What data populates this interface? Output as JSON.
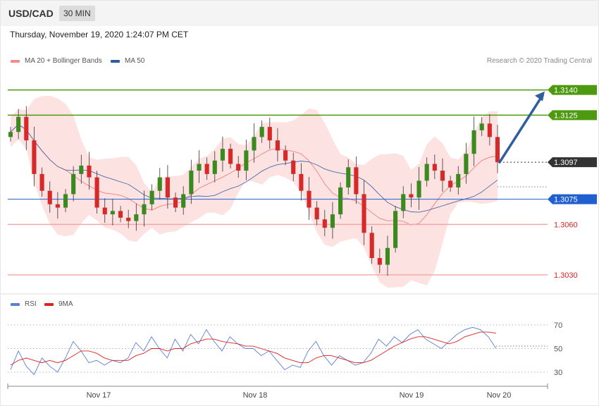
{
  "header": {
    "symbol": "USD/CAD",
    "timeframe": "30 MIN"
  },
  "timestamp": "Thursday, November 19, 2020 1:24:07 PM CET",
  "legend_top": [
    {
      "label": "MA 20 + Bollinger Bands",
      "color": "#f48c8c"
    },
    {
      "label": "MA 50",
      "color": "#2f5d9e"
    }
  ],
  "credit": "Research © 2020 Trading Central",
  "legend_bottom": [
    {
      "label": "RSI",
      "color": "#5b7fd6"
    },
    {
      "label": "9MA",
      "color": "#e02020"
    }
  ],
  "colors": {
    "up": "#3a8a1f",
    "down": "#d62a2a",
    "bb_fill": "#fde2e2",
    "ma20": "#f28080",
    "ma50": "#4a6aa8",
    "resistance": "#4d9a10",
    "support_blue": "#1f5fcf",
    "support_red": "#f4a6a6",
    "current": "#333333",
    "arrow": "#2f5d9e"
  },
  "chart_data": [
    {
      "type": "candlestick",
      "x_labels": [
        "Nov 17",
        "Nov 18",
        "Nov 19",
        "Nov 20"
      ],
      "ylim": [
        1.3022,
        1.3152
      ],
      "levels": [
        {
          "value": 1.314,
          "label": "1.3140",
          "style": "resistance"
        },
        {
          "value": 1.3125,
          "label": "1.3125",
          "style": "resistance"
        },
        {
          "value": 1.3097,
          "label": "1.3097",
          "style": "current"
        },
        {
          "value": 1.3075,
          "label": "1.3075",
          "style": "pivot"
        },
        {
          "value": 1.306,
          "label": "1.3060",
          "style": "support"
        },
        {
          "value": 1.303,
          "label": "1.3030",
          "style": "support"
        }
      ],
      "projection": {
        "from": 1.3097,
        "to": 1.314
      },
      "close_path": [
        1.3115,
        1.3124,
        1.311,
        1.309,
        1.308,
        1.3072,
        1.307,
        1.3078,
        1.309,
        1.3095,
        1.3088,
        1.307,
        1.3066,
        1.3068,
        1.3064,
        1.3062,
        1.3066,
        1.3072,
        1.308,
        1.3088,
        1.3076,
        1.307,
        1.3078,
        1.3092,
        1.3096,
        1.309,
        1.3098,
        1.3105,
        1.3096,
        1.3092,
        1.3104,
        1.3112,
        1.3118,
        1.311,
        1.3104,
        1.3098,
        1.309,
        1.308,
        1.307,
        1.3063,
        1.3058,
        1.3066,
        1.3082,
        1.3094,
        1.3078,
        1.3055,
        1.304,
        1.3036,
        1.3046,
        1.3068,
        1.3078,
        1.3076,
        1.3086,
        1.3096,
        1.3092,
        1.3086,
        1.3082,
        1.309,
        1.3102,
        1.3116,
        1.312,
        1.3112,
        1.3097
      ]
    },
    {
      "type": "line",
      "title": "RSI",
      "ylim": [
        20,
        80
      ],
      "y_ticks": [
        70,
        50,
        30
      ],
      "series": [
        {
          "name": "RSI",
          "values": [
            32,
            48,
            35,
            28,
            42,
            35,
            30,
            42,
            56,
            48,
            38,
            40,
            36,
            40,
            38,
            42,
            55,
            48,
            60,
            50,
            42,
            58,
            48,
            62,
            54,
            66,
            56,
            48,
            60,
            54,
            50,
            50,
            44,
            48,
            40,
            32,
            36,
            34,
            48,
            56,
            44,
            36,
            44,
            40,
            36,
            38,
            46,
            58,
            52,
            60,
            55,
            62,
            66,
            58,
            54,
            50,
            56,
            62,
            66,
            68,
            66,
            60,
            50
          ]
        },
        {
          "name": "9MA",
          "values": [
            36,
            40,
            42,
            40,
            38,
            40,
            38,
            40,
            44,
            48,
            48,
            46,
            42,
            40,
            40,
            40,
            44,
            46,
            50,
            50,
            48,
            50,
            50,
            54,
            56,
            58,
            58,
            56,
            55,
            54,
            52,
            52,
            50,
            48,
            46,
            42,
            40,
            38,
            38,
            42,
            44,
            44,
            42,
            40,
            38,
            38,
            40,
            44,
            48,
            52,
            55,
            58,
            60,
            60,
            58,
            56,
            54,
            56,
            60,
            62,
            64,
            64,
            63
          ]
        }
      ]
    }
  ]
}
